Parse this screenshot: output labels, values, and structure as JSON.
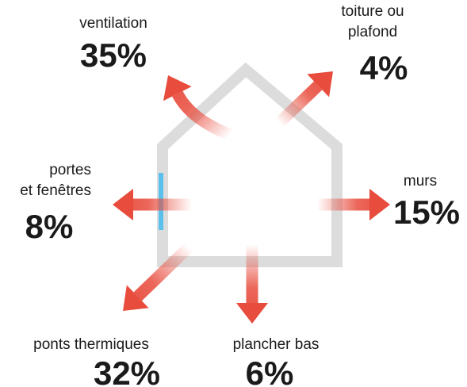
{
  "items": [
    {
      "label": [
        "ventilation"
      ],
      "value": "35%"
    },
    {
      "label": [
        "toiture ou",
        "plafond"
      ],
      "value": "4%"
    },
    {
      "label": [
        "portes",
        "et fenêtres"
      ],
      "value": "8%"
    },
    {
      "label": [
        "murs"
      ],
      "value": "15%"
    },
    {
      "label": [
        "ponts thermiques"
      ],
      "value": "32%"
    },
    {
      "label": [
        "plancher bas"
      ],
      "value": "6%"
    }
  ]
}
